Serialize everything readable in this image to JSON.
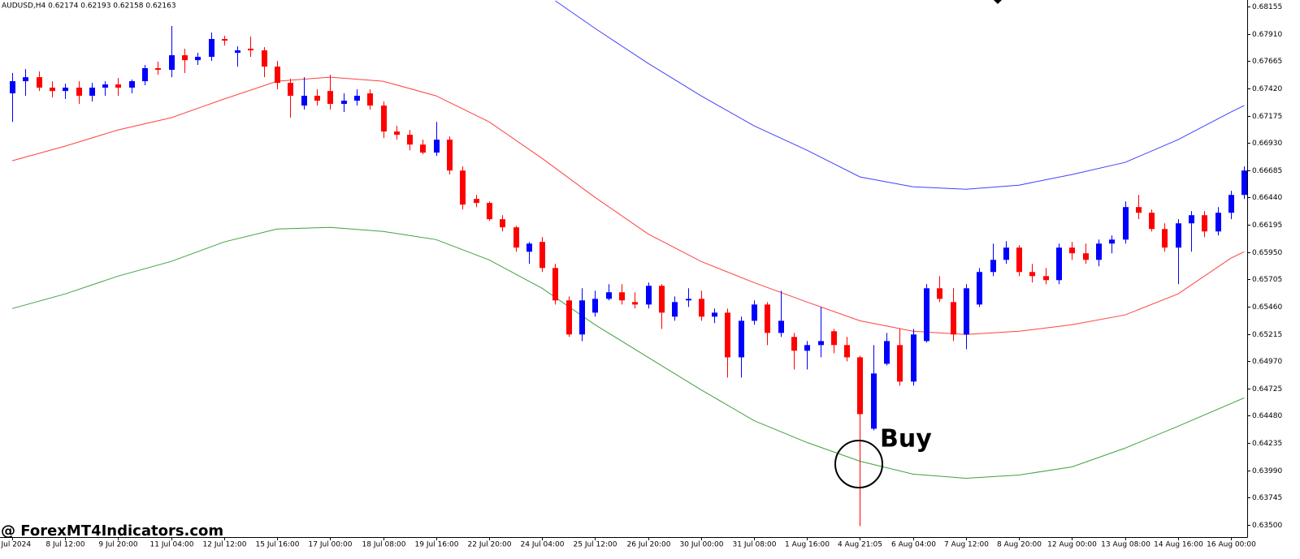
{
  "chart_data": {
    "type": "candlestick",
    "title": "AUDUSD,H4  0.62174 0.62193 0.62158 0.62163",
    "annotation": "Buy",
    "watermark": "@ ForexMT4Indicators.com",
    "up_color": "#0000ff",
    "down_color": "#ff0000",
    "ylim": [
      0.63391,
      0.68213
    ],
    "yticks": [
      0.68155,
      {
        "value": 0.6791,
        "label": "0.67910"
      },
      0.67665,
      {
        "value": 0.6742,
        "label": "0.67420"
      },
      0.67175,
      {
        "value": 0.6693,
        "label": "0.66930"
      },
      0.66685,
      {
        "value": 0.6644,
        "label": "0.66440"
      },
      0.66195,
      {
        "value": 0.6595,
        "label": "0.65950"
      },
      0.65705,
      {
        "value": 0.6546,
        "label": "0.65460"
      },
      0.65215,
      {
        "value": 0.6497,
        "label": "0.64970"
      },
      0.64725,
      {
        "value": 0.6448,
        "label": "0.64480"
      },
      0.64235,
      {
        "value": 0.6399,
        "label": "0.63990"
      },
      0.63745,
      {
        "value": 0.635,
        "label": "0.63500"
      }
    ],
    "categories": [
      "5 Jul 2024",
      null,
      null,
      null,
      "8 Jul 12:00",
      null,
      null,
      null,
      "9 Jul 20:00",
      null,
      null,
      null,
      "11 Jul 04:00",
      null,
      null,
      null,
      "12 Jul 12:00",
      null,
      null,
      null,
      "15 Jul 16:00",
      null,
      null,
      null,
      "17 Jul 00:00",
      null,
      null,
      null,
      "18 Jul 08:00",
      null,
      null,
      null,
      "19 Jul 16:00",
      null,
      null,
      null,
      "22 Jul 20:00",
      null,
      null,
      null,
      "24 Jul 04:00",
      null,
      null,
      null,
      "25 Jul 12:00",
      null,
      null,
      null,
      "26 Jul 20:00",
      null,
      null,
      null,
      "30 Jul 00:00",
      null,
      null,
      null,
      "31 Jul 08:00",
      null,
      null,
      null,
      "1 Aug 16:00",
      null,
      null,
      null,
      "4 Aug 21:05",
      null,
      null,
      null,
      "6 Aug 04:00",
      null,
      null,
      null,
      "7 Aug 12:00",
      null,
      null,
      null,
      "8 Aug 20:00",
      null,
      null,
      null,
      "12 Aug 00:00",
      null,
      null,
      null,
      "13 Aug 08:00",
      null,
      null,
      null,
      "14 Aug 16:00",
      null,
      null,
      null,
      "16 Aug 00:00",
      null
    ],
    "ohlc": [
      [
        0.67375,
        0.67557,
        0.67119,
        0.67484
      ],
      [
        0.67484,
        0.67593,
        0.67353,
        0.6752
      ],
      [
        0.6752,
        0.67571,
        0.67396,
        0.67426
      ],
      [
        0.67426,
        0.67484,
        0.67338,
        0.67396
      ],
      [
        0.67396,
        0.67462,
        0.67324,
        0.67426
      ],
      [
        0.67426,
        0.67484,
        0.6728,
        0.67353
      ],
      [
        0.67353,
        0.67469,
        0.67302,
        0.67426
      ],
      [
        0.67426,
        0.67484,
        0.67353,
        0.67455
      ],
      [
        0.67455,
        0.67513,
        0.67353,
        0.67426
      ],
      [
        0.67426,
        0.67499,
        0.67375,
        0.67484
      ],
      [
        0.67484,
        0.6763,
        0.67448,
        0.67601
      ],
      [
        0.67601,
        0.67659,
        0.67542,
        0.67586
      ],
      [
        0.67586,
        0.6798,
        0.6752,
        0.67717
      ],
      [
        0.67717,
        0.67776,
        0.67557,
        0.67673
      ],
      [
        0.67673,
        0.67739,
        0.6763,
        0.67703
      ],
      [
        0.67703,
        0.67921,
        0.67666,
        0.67863
      ],
      [
        0.67863,
        0.67892,
        0.67805,
        0.67848
      ],
      [
        0.67739,
        0.67797,
        0.67615,
        0.67761
      ],
      [
        0.67776,
        0.67885,
        0.67703,
        0.67761
      ],
      [
        0.67761,
        0.6779,
        0.6752,
        0.67615
      ],
      [
        0.67615,
        0.67666,
        0.67411,
        0.67469
      ],
      [
        0.67469,
        0.67506,
        0.67156,
        0.67353
      ],
      [
        0.67265,
        0.6752,
        0.67229,
        0.67353
      ],
      [
        0.67353,
        0.67411,
        0.67265,
        0.67309
      ],
      [
        0.67396,
        0.67542,
        0.67229,
        0.6728
      ],
      [
        0.6728,
        0.67375,
        0.67207,
        0.67309
      ],
      [
        0.67309,
        0.67411,
        0.67265,
        0.67353
      ],
      [
        0.67375,
        0.67411,
        0.67229,
        0.67265
      ],
      [
        0.67265,
        0.67302,
        0.66974,
        0.67032
      ],
      [
        0.67032,
        0.67083,
        0.66959,
        0.67003
      ],
      [
        0.67003,
        0.67047,
        0.66864,
        0.66915
      ],
      [
        0.66915,
        0.66959,
        0.66828,
        0.66843
      ],
      [
        0.66843,
        0.67119,
        0.66813,
        0.66959
      ],
      [
        0.66959,
        0.66988,
        0.66646,
        0.66682
      ],
      [
        0.66682,
        0.66719,
        0.66332,
        0.66376
      ],
      [
        0.66427,
        0.66463,
        0.66354,
        0.66391
      ],
      [
        0.66391,
        0.66405,
        0.6623,
        0.66245
      ],
      [
        0.66245,
        0.66281,
        0.66135,
        0.66172
      ],
      [
        0.66172,
        0.66186,
        0.65953,
        0.6599
      ],
      [
        0.65953,
        0.66041,
        0.65844,
        0.66026
      ],
      [
        0.66041,
        0.66084,
        0.65771,
        0.65807
      ],
      [
        0.65807,
        0.65844,
        0.65479,
        0.65516
      ],
      [
        0.65516,
        0.65552,
        0.65188,
        0.6521
      ],
      [
        0.6521,
        0.65625,
        0.65151,
        0.65516
      ],
      [
        0.65406,
        0.65603,
        0.6537,
        0.6553
      ],
      [
        0.6553,
        0.65662,
        0.65516,
        0.65589
      ],
      [
        0.65589,
        0.65662,
        0.65479,
        0.65516
      ],
      [
        0.65501,
        0.65589,
        0.65443,
        0.65479
      ],
      [
        0.65479,
        0.65676,
        0.65443,
        0.65647
      ],
      [
        0.65647,
        0.65662,
        0.6526,
        0.65406
      ],
      [
        0.6537,
        0.65552,
        0.65333,
        0.65501
      ],
      [
        0.65516,
        0.65625,
        0.65457,
        0.6553
      ],
      [
        0.6553,
        0.65603,
        0.65333,
        0.6537
      ],
      [
        0.6537,
        0.65443,
        0.65312,
        0.65406
      ],
      [
        0.65406,
        0.65443,
        0.64823,
        0.65005
      ],
      [
        0.65005,
        0.6537,
        0.64823,
        0.65333
      ],
      [
        0.65333,
        0.65516,
        0.65297,
        0.65479
      ],
      [
        0.65479,
        0.65501,
        0.65115,
        0.65224
      ],
      [
        0.65224,
        0.65603,
        0.65188,
        0.65333
      ],
      [
        0.65188,
        0.65224,
        0.64896,
        0.65064
      ],
      [
        0.65064,
        0.65151,
        0.64896,
        0.65115
      ],
      [
        0.65115,
        0.65457,
        0.65005,
        0.65151
      ],
      [
        0.65239,
        0.6526,
        0.65042,
        0.65115
      ],
      [
        0.65115,
        0.65188,
        0.64969,
        0.65005
      ],
      [
        0.65005,
        0.6502,
        0.63489,
        0.64495
      ],
      [
        0.64364,
        0.65115,
        0.64349,
        0.6486
      ],
      [
        0.64947,
        0.65224,
        0.64932,
        0.65151
      ],
      [
        0.65115,
        0.6526,
        0.6475,
        0.64787
      ],
      [
        0.64787,
        0.6526,
        0.6475,
        0.6521
      ],
      [
        0.65151,
        0.65662,
        0.65137,
        0.65625
      ],
      [
        0.65625,
        0.65734,
        0.65501,
        0.6553
      ],
      [
        0.65501,
        0.65625,
        0.65151,
        0.6521
      ],
      [
        0.6521,
        0.65662,
        0.65078,
        0.65625
      ],
      [
        0.65479,
        0.65807,
        0.65457,
        0.65771
      ],
      [
        0.65771,
        0.66026,
        0.65734,
        0.6588
      ],
      [
        0.6588,
        0.66048,
        0.65844,
        0.6599
      ],
      [
        0.6599,
        0.66011,
        0.65734,
        0.65771
      ],
      [
        0.65771,
        0.65844,
        0.65676,
        0.65734
      ],
      [
        0.65734,
        0.65807,
        0.65662,
        0.65698
      ],
      [
        0.65698,
        0.66026,
        0.65662,
        0.6599
      ],
      [
        0.6599,
        0.66041,
        0.6588,
        0.65939
      ],
      [
        0.65939,
        0.66026,
        0.65844,
        0.6588
      ],
      [
        0.6588,
        0.66062,
        0.65822,
        0.66026
      ],
      [
        0.66026,
        0.66099,
        0.65939,
        0.66062
      ],
      [
        0.66062,
        0.66405,
        0.66026,
        0.66354
      ],
      [
        0.66354,
        0.66463,
        0.66245,
        0.66303
      ],
      [
        0.66303,
        0.66332,
        0.66135,
        0.66157
      ],
      [
        0.66157,
        0.66208,
        0.65953,
        0.6599
      ],
      [
        0.6599,
        0.66245,
        0.65662,
        0.66208
      ],
      [
        0.66208,
        0.66318,
        0.65953,
        0.66281
      ],
      [
        0.66281,
        0.66318,
        0.66084,
        0.66135
      ],
      [
        0.66135,
        0.66354,
        0.66099,
        0.66303
      ],
      [
        0.66303,
        0.665,
        0.66245,
        0.66463
      ],
      [
        0.66463,
        0.66719,
        0.66427,
        0.66682
      ]
    ],
    "lines": [
      {
        "color": "#ff0000",
        "x": [
          0,
          4,
          8,
          12,
          16,
          20,
          24,
          28,
          32,
          36,
          40,
          44,
          48,
          52,
          56,
          60,
          64,
          68,
          72,
          76,
          80,
          84,
          88,
          92,
          93
        ],
        "values": [
          0.6677,
          0.66901,
          0.67047,
          0.67156,
          0.67324,
          0.67484,
          0.6752,
          0.67484,
          0.67353,
          0.67119,
          0.66791,
          0.66441,
          0.66113,
          0.65866,
          0.65676,
          0.65501,
          0.65333,
          0.65239,
          0.6521,
          0.65239,
          0.65297,
          0.65385,
          0.65574,
          0.65895,
          0.65953
        ]
      },
      {
        "color": "#008000",
        "x": [
          0,
          4,
          8,
          12,
          16,
          20,
          24,
          28,
          32,
          36,
          40,
          44,
          48,
          52,
          56,
          60,
          64,
          68,
          72,
          76,
          80,
          84,
          88,
          92,
          93
        ],
        "values": [
          0.65443,
          0.65574,
          0.65734,
          0.65866,
          0.66041,
          0.66157,
          0.66172,
          0.66135,
          0.66062,
          0.6588,
          0.65625,
          0.65297,
          0.65005,
          0.64714,
          0.64437,
          0.6424,
          0.64072,
          0.63956,
          0.63919,
          0.63948,
          0.64021,
          0.64189,
          0.64386,
          0.6459,
          0.64641
        ]
      },
      {
        "color": "#0000ff",
        "x": [
          41,
          44,
          48,
          52,
          56,
          60,
          64,
          68,
          72,
          76,
          80,
          84,
          88,
          92,
          93
        ],
        "values": [
          0.68206,
          0.67958,
          0.67644,
          0.67353,
          0.67083,
          0.66864,
          0.66624,
          0.66536,
          0.66514,
          0.66551,
          0.66646,
          0.66755,
          0.66959,
          0.67207,
          0.67265
        ]
      }
    ]
  }
}
